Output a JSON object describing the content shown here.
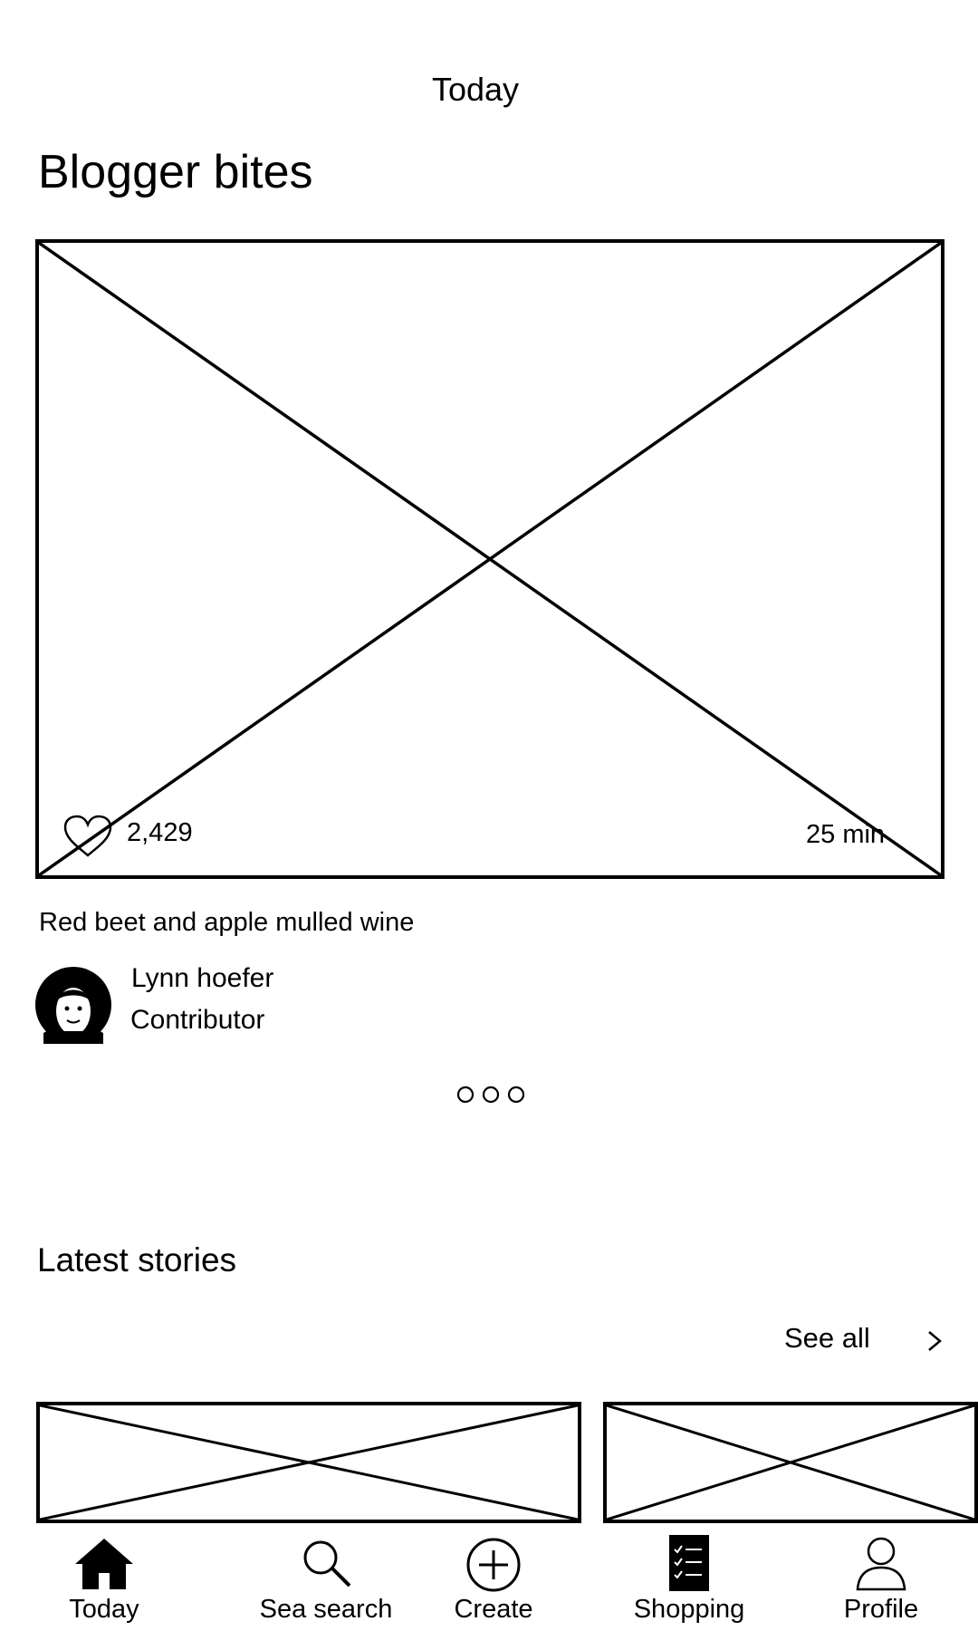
{
  "header": {
    "title": "Today"
  },
  "blogger_bites": {
    "title": "Blogger bites",
    "featured": {
      "likes": "2,429",
      "duration": "25 min",
      "recipe_title": "Red beet and apple mulled wine",
      "author": {
        "name": "Lynn hoefer",
        "role": "Contributor"
      }
    },
    "pagination": {
      "total": 3,
      "current": 1
    }
  },
  "latest_stories": {
    "title": "Latest stories",
    "see_all": "See all"
  },
  "tabbar": {
    "items": [
      {
        "label": "Today",
        "icon": "home-icon"
      },
      {
        "label": "Sea search",
        "icon": "search-icon"
      },
      {
        "label": "Create",
        "icon": "plus-circle-icon"
      },
      {
        "label": "Shopping",
        "icon": "checklist-icon"
      },
      {
        "label": "Profile",
        "icon": "person-icon"
      }
    ]
  }
}
